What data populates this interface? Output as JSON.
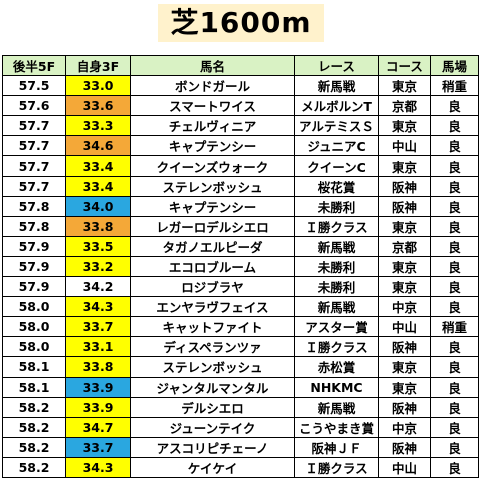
{
  "title": "芝1600m",
  "colors": {
    "title_bg": "#fff2cc",
    "header_bg": "#d9f2c4",
    "yellow": "#ffff00",
    "orange": "#f4a838",
    "blue": "#2aa7e0"
  },
  "headers": [
    "後半5F",
    "自身3F",
    "馬名",
    "レース",
    "コース",
    "馬場"
  ],
  "rows": [
    {
      "f5": "57.5",
      "f3": "33.0",
      "f3_color": "yellow",
      "horse": "ボンドガール",
      "race": "新馬戦",
      "course": "東京",
      "track": "稍重"
    },
    {
      "f5": "57.6",
      "f3": "33.6",
      "f3_color": "orange",
      "horse": "スマートワイス",
      "race": "メルボルンT",
      "course": "京都",
      "track": "良"
    },
    {
      "f5": "57.7",
      "f3": "33.3",
      "f3_color": "yellow",
      "horse": "チェルヴィニア",
      "race": "アルテミスＳ",
      "course": "東京",
      "track": "良"
    },
    {
      "f5": "57.7",
      "f3": "34.6",
      "f3_color": "orange",
      "horse": "キャプテンシー",
      "race": "ジュニアC",
      "course": "中山",
      "track": "良"
    },
    {
      "f5": "57.7",
      "f3": "33.4",
      "f3_color": "yellow",
      "horse": "クイーンズウォーク",
      "race": "クイーンC",
      "course": "東京",
      "track": "良"
    },
    {
      "f5": "57.7",
      "f3": "33.4",
      "f3_color": "yellow",
      "horse": "ステレンボッシュ",
      "race": "桜花賞",
      "course": "阪神",
      "track": "良"
    },
    {
      "f5": "57.8",
      "f3": "34.0",
      "f3_color": "blue",
      "horse": "キャプテンシー",
      "race": "未勝利",
      "course": "阪神",
      "track": "良"
    },
    {
      "f5": "57.8",
      "f3": "33.8",
      "f3_color": "orange",
      "horse": "レガーロデルシエロ",
      "race": "Ｉ勝クラス",
      "course": "東京",
      "track": "良"
    },
    {
      "f5": "57.9",
      "f3": "33.5",
      "f3_color": "yellow",
      "horse": "タガノエルピーダ",
      "race": "新馬戦",
      "course": "京都",
      "track": "良"
    },
    {
      "f5": "57.9",
      "f3": "33.2",
      "f3_color": "yellow",
      "horse": "エコロブルーム",
      "race": "未勝利",
      "course": "東京",
      "track": "良"
    },
    {
      "f5": "57.9",
      "f3": "34.2",
      "f3_color": "none",
      "horse": "ロジブラヤ",
      "race": "未勝利",
      "course": "東京",
      "track": "良"
    },
    {
      "f5": "58.0",
      "f3": "34.3",
      "f3_color": "yellow",
      "horse": "エンヤラヴフェイス",
      "race": "新馬戦",
      "course": "中京",
      "track": "良"
    },
    {
      "f5": "58.0",
      "f3": "33.7",
      "f3_color": "yellow",
      "horse": "キャットファイト",
      "race": "アスター賞",
      "course": "中山",
      "track": "稍重"
    },
    {
      "f5": "58.0",
      "f3": "33.1",
      "f3_color": "yellow",
      "horse": "ディスペランツァ",
      "race": "Ｉ勝クラス",
      "course": "阪神",
      "track": "良"
    },
    {
      "f5": "58.1",
      "f3": "33.8",
      "f3_color": "yellow",
      "horse": "ステレンボッシュ",
      "race": "赤松賞",
      "course": "東京",
      "track": "良"
    },
    {
      "f5": "58.1",
      "f3": "33.9",
      "f3_color": "blue",
      "horse": "ジャンタルマンタル",
      "race": "NHKMC",
      "course": "東京",
      "track": "良"
    },
    {
      "f5": "58.2",
      "f3": "33.9",
      "f3_color": "yellow",
      "horse": "デルシエロ",
      "race": "新馬戦",
      "course": "阪神",
      "track": "良"
    },
    {
      "f5": "58.2",
      "f3": "34.7",
      "f3_color": "yellow",
      "horse": "ジューンテイク",
      "race": "こうやまき賞",
      "course": "中京",
      "track": "良"
    },
    {
      "f5": "58.2",
      "f3": "33.7",
      "f3_color": "blue",
      "horse": "アスコリピチェーノ",
      "race": "阪神ＪＦ",
      "course": "阪神",
      "track": "良"
    },
    {
      "f5": "58.2",
      "f3": "34.3",
      "f3_color": "yellow",
      "horse": "ケイケイ",
      "race": "Ｉ勝クラス",
      "course": "中山",
      "track": "良"
    }
  ]
}
